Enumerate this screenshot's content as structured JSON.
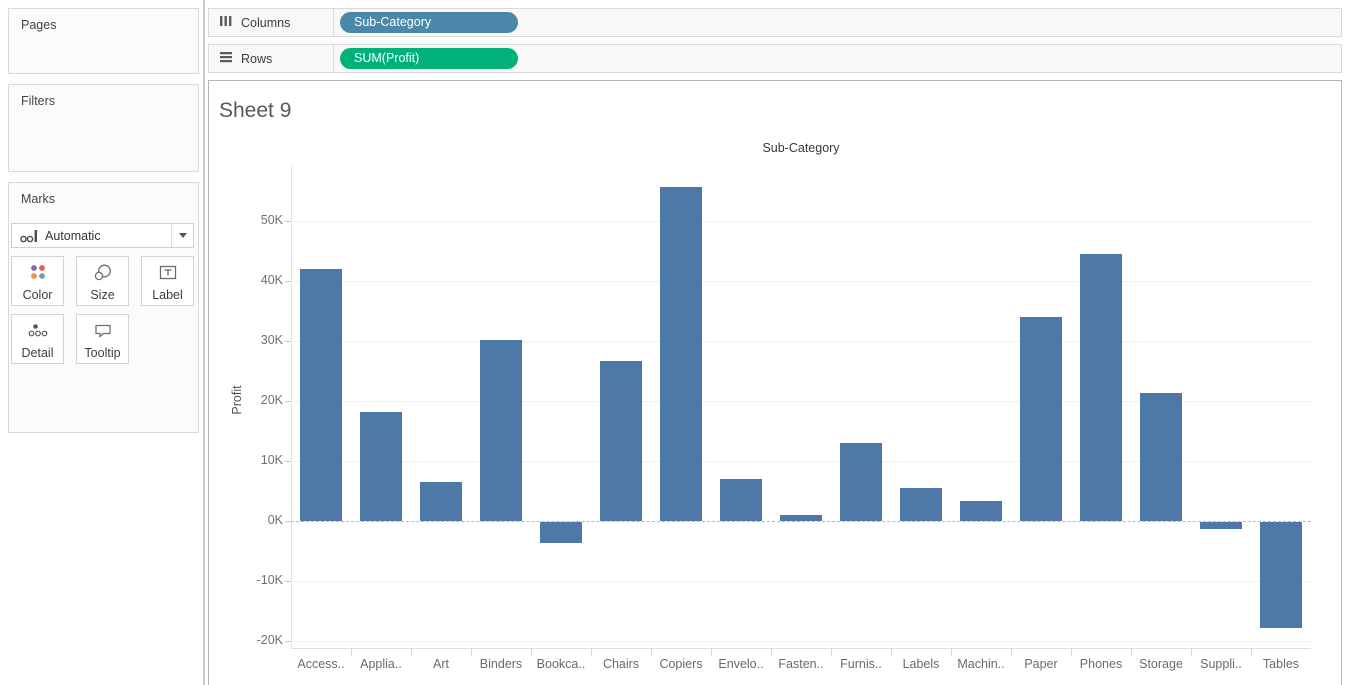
{
  "sidebar": {
    "pages_label": "Pages",
    "filters_label": "Filters",
    "marks": {
      "label": "Marks",
      "mark_type_selector": "Automatic",
      "buttons": [
        {
          "label": "Color",
          "icon": "color-dots-icon"
        },
        {
          "label": "Size",
          "icon": "size-circles-icon"
        },
        {
          "label": "Label",
          "icon": "label-t-icon"
        },
        {
          "label": "Detail",
          "icon": "detail-dots-icon"
        },
        {
          "label": "Tooltip",
          "icon": "tooltip-bubble-icon"
        }
      ]
    }
  },
  "shelves": {
    "columns": {
      "label": "Columns",
      "pill": {
        "text": "Sub-Category",
        "color": "#4a87a8"
      }
    },
    "rows": {
      "label": "Rows",
      "pill": {
        "text": "SUM(Profit)",
        "color": "#00b27a"
      }
    }
  },
  "sheet": {
    "title": "Sheet 9"
  },
  "chart_data": {
    "type": "bar",
    "title": "Sub-Category",
    "xlabel": "Sub-Category",
    "ylabel": "Profit",
    "categories": [
      "Access..",
      "Applia..",
      "Art",
      "Binders",
      "Bookca..",
      "Chairs",
      "Copiers",
      "Envelo..",
      "Fasten..",
      "Furnis..",
      "Labels",
      "Machin..",
      "Paper",
      "Phones",
      "Storage",
      "Suppli..",
      "Tables"
    ],
    "values": [
      41937,
      18138,
      6528,
      30222,
      -3473,
      26590,
      55618,
      6964,
      950,
      13059,
      5546,
      3385,
      34054,
      44516,
      21279,
      -1189,
      -17725
    ],
    "ytick_labels": [
      "50K",
      "40K",
      "30K",
      "20K",
      "10K",
      "0K",
      "-10K",
      "-20K"
    ],
    "ytick_values": [
      50000,
      40000,
      30000,
      20000,
      10000,
      0,
      -10000,
      -20000
    ],
    "ylim": [
      -21400,
      59200
    ],
    "bar_color": "#4e79a7",
    "grid": "horizontal-light",
    "zero_line": "dashed",
    "legend": "none"
  }
}
